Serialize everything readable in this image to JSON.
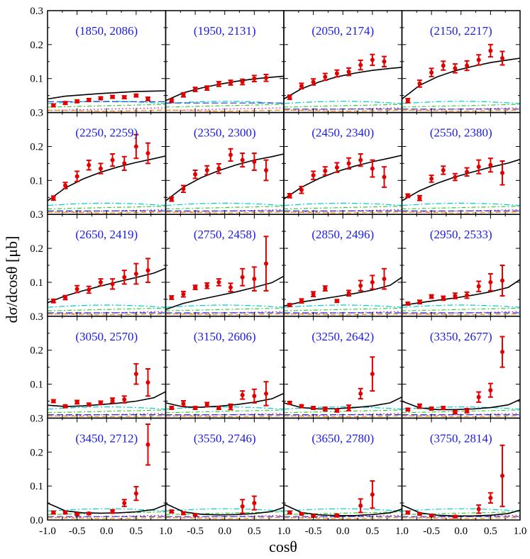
{
  "chart_data": {
    "type": "scatter",
    "layout": "5 rows x 4 columns grid of panels sharing axes",
    "xlabel": "cosθ",
    "ylabel": "dσ/dcosθ [μb]",
    "xlim": [
      -1.0,
      1.0
    ],
    "ylim": [
      0.0,
      0.3
    ],
    "x_ticks": [
      "-1.0",
      "-0.5",
      "0.0",
      "0.5",
      "1.0"
    ],
    "y_ticks": [
      "0.0",
      "0.1",
      "0.2",
      "0.3"
    ],
    "cos_points": [
      -0.9,
      -0.7,
      -0.5,
      -0.3,
      -0.1,
      0.1,
      0.3,
      0.5,
      0.7,
      0.9
    ],
    "panels": [
      {
        "label": "(1850, 2086)",
        "y": [
          0.021,
          0.028,
          0.033,
          0.037,
          0.042,
          0.046,
          0.045,
          0.05,
          0.04,
          null
        ],
        "err": [
          0.004,
          0.004,
          0.004,
          0.004,
          0.004,
          0.004,
          0.004,
          0.004,
          0.005,
          0
        ],
        "fit": [
          0.04,
          0.048,
          0.052,
          0.056,
          0.059,
          0.062,
          0.063,
          0.064
        ]
      },
      {
        "label": "(1950, 2131)",
        "y": [
          0.035,
          0.052,
          0.068,
          0.072,
          0.084,
          0.088,
          0.09,
          0.1,
          0.102,
          null
        ],
        "err": [
          0.005,
          0.006,
          0.006,
          0.006,
          0.007,
          0.007,
          0.008,
          0.009,
          0.01,
          0
        ],
        "fit": [
          0.035,
          0.058,
          0.072,
          0.083,
          0.092,
          0.099,
          0.104,
          0.107
        ]
      },
      {
        "label": "(2050, 2174)",
        "y": [
          0.045,
          0.078,
          0.09,
          0.105,
          0.115,
          0.12,
          0.14,
          0.155,
          0.15,
          null
        ],
        "err": [
          0.006,
          0.008,
          0.009,
          0.01,
          0.01,
          0.011,
          0.014,
          0.016,
          0.015,
          0
        ],
        "fit": [
          0.04,
          0.07,
          0.09,
          0.105,
          0.116,
          0.124,
          0.13,
          0.133
        ]
      },
      {
        "label": "(2150, 2217)",
        "y": [
          0.035,
          0.085,
          0.118,
          0.138,
          0.13,
          0.138,
          0.155,
          0.182,
          0.16,
          null
        ],
        "err": [
          0.006,
          0.01,
          0.012,
          0.013,
          0.013,
          0.014,
          0.015,
          0.018,
          0.02,
          0
        ],
        "fit": [
          0.04,
          0.08,
          0.105,
          0.123,
          0.136,
          0.147,
          0.155,
          0.16
        ]
      },
      {
        "label": "(2250, 2259)",
        "y": [
          0.048,
          0.085,
          0.112,
          0.145,
          0.135,
          0.16,
          0.15,
          0.2,
          0.18,
          null
        ],
        "err": [
          0.006,
          0.009,
          0.015,
          0.014,
          0.015,
          0.018,
          0.02,
          0.035,
          0.03,
          0
        ],
        "fit": [
          0.04,
          0.078,
          0.104,
          0.124,
          0.14,
          0.153,
          0.164,
          0.172
        ]
      },
      {
        "label": "(2350, 2300)",
        "y": [
          0.045,
          0.075,
          0.118,
          0.13,
          0.135,
          0.175,
          0.16,
          0.155,
          0.13,
          null
        ],
        "err": [
          0.006,
          0.01,
          0.012,
          0.013,
          0.014,
          0.018,
          0.02,
          0.025,
          0.03,
          0
        ],
        "fit": [
          0.04,
          0.08,
          0.108,
          0.129,
          0.146,
          0.16,
          0.17,
          0.178
        ]
      },
      {
        "label": "(2450, 2340)",
        "y": [
          0.055,
          0.072,
          0.115,
          0.128,
          0.138,
          0.15,
          0.16,
          0.135,
          0.11,
          null
        ],
        "err": [
          0.006,
          0.01,
          0.012,
          0.012,
          0.014,
          0.016,
          0.018,
          0.025,
          0.03,
          0
        ],
        "fit": [
          0.045,
          0.08,
          0.106,
          0.126,
          0.142,
          0.155,
          0.166,
          0.174
        ]
      },
      {
        "label": "(2550, 2380)",
        "y": [
          0.055,
          0.048,
          0.105,
          0.13,
          0.11,
          0.125,
          0.14,
          0.145,
          0.122,
          null
        ],
        "err": [
          0.005,
          0.007,
          0.01,
          0.012,
          0.01,
          0.012,
          0.02,
          0.02,
          0.035,
          0
        ],
        "fit": [
          0.04,
          0.07,
          0.092,
          0.11,
          0.125,
          0.139,
          0.151,
          0.162
        ]
      },
      {
        "label": "(2650, 2419)",
        "y": [
          0.045,
          0.055,
          0.08,
          0.078,
          0.1,
          0.095,
          0.115,
          0.125,
          0.135,
          null
        ],
        "err": [
          0.005,
          0.006,
          0.01,
          0.01,
          0.01,
          0.015,
          0.02,
          0.03,
          0.035,
          0
        ],
        "fit": [
          0.04,
          0.06,
          0.075,
          0.089,
          0.102,
          0.114,
          0.127,
          0.141
        ]
      },
      {
        "label": "(2750, 2458)",
        "y": [
          0.055,
          0.065,
          0.085,
          0.09,
          0.1,
          0.085,
          0.115,
          0.11,
          0.155,
          null
        ],
        "err": [
          0.005,
          0.008,
          0.006,
          0.008,
          0.01,
          0.012,
          0.025,
          0.035,
          0.08,
          0
        ],
        "fit": [
          0.02,
          0.038,
          0.05,
          0.061,
          0.072,
          0.085,
          0.099,
          0.118
        ]
      },
      {
        "label": "(2850, 2496)",
        "y": [
          0.033,
          0.045,
          0.065,
          0.082,
          0.045,
          0.068,
          0.09,
          0.1,
          0.11,
          null
        ],
        "err": [
          0.004,
          0.006,
          0.007,
          0.007,
          0.004,
          0.008,
          0.015,
          0.02,
          0.03,
          0
        ],
        "fit": [
          0.03,
          0.042,
          0.05,
          0.058,
          0.067,
          0.077,
          0.091,
          0.115
        ]
      },
      {
        "label": "(2950, 2533)",
        "y": [
          0.037,
          0.042,
          0.058,
          0.053,
          0.06,
          0.062,
          0.088,
          0.1,
          0.105,
          null
        ],
        "err": [
          0.004,
          0.005,
          0.005,
          0.006,
          0.008,
          0.009,
          0.015,
          0.025,
          0.045,
          0
        ],
        "fit": [
          0.032,
          0.04,
          0.047,
          0.054,
          0.062,
          0.072,
          0.085,
          0.108
        ]
      },
      {
        "label": "(3050, 2570)",
        "y": [
          0.05,
          0.035,
          0.047,
          0.04,
          0.045,
          0.052,
          0.055,
          0.13,
          0.105,
          null
        ],
        "err": [
          0.004,
          0.004,
          0.005,
          0.004,
          0.005,
          0.007,
          0.01,
          0.03,
          0.04,
          0
        ],
        "fit": [
          0.038,
          0.034,
          0.036,
          0.04,
          0.044,
          0.05,
          0.06,
          0.078
        ]
      },
      {
        "label": "(3150, 2606)",
        "y": [
          0.03,
          0.043,
          0.03,
          0.04,
          0.03,
          0.033,
          0.068,
          0.065,
          0.072,
          null
        ],
        "err": [
          0.004,
          0.008,
          0.004,
          0.006,
          0.004,
          0.008,
          0.012,
          0.02,
          0.035,
          0
        ],
        "fit": [
          0.045,
          0.033,
          0.032,
          0.035,
          0.04,
          0.047,
          0.057,
          0.073
        ]
      },
      {
        "label": "(3250, 2642)",
        "y": [
          0.045,
          0.035,
          0.03,
          0.027,
          0.022,
          0.03,
          0.072,
          0.13,
          null,
          null
        ],
        "err": [
          0.004,
          0.004,
          0.004,
          0.005,
          0.004,
          0.008,
          0.015,
          0.05,
          0,
          0
        ],
        "fit": [
          0.045,
          0.031,
          0.027,
          0.028,
          0.031,
          0.036,
          0.045,
          0.062
        ]
      },
      {
        "label": "(3350, 2677)",
        "y": [
          0.025,
          0.035,
          0.028,
          0.03,
          0.017,
          0.022,
          0.062,
          0.082,
          0.195,
          null
        ],
        "err": [
          0.004,
          0.006,
          0.004,
          0.004,
          0.004,
          0.006,
          0.015,
          0.02,
          0.045,
          0
        ],
        "fit": [
          0.05,
          0.03,
          0.025,
          0.025,
          0.027,
          0.031,
          0.039,
          0.055
        ]
      },
      {
        "label": "(3450, 2712)",
        "y": [
          0.022,
          0.022,
          0.017,
          0.019,
          null,
          0.025,
          0.05,
          0.078,
          0.222,
          null
        ],
        "err": [
          0.004,
          0.004,
          0.003,
          0.003,
          0,
          0.005,
          0.01,
          0.02,
          0.06,
          0
        ],
        "fit": [
          0.05,
          0.027,
          0.021,
          0.02,
          0.021,
          0.024,
          0.031,
          0.045
        ]
      },
      {
        "label": "(3550, 2746)",
        "y": [
          0.025,
          0.02,
          0.015,
          null,
          null,
          null,
          0.04,
          0.05,
          null,
          null
        ],
        "err": [
          0.004,
          0.004,
          0.003,
          0,
          0,
          0,
          0.02,
          0.02,
          0,
          0
        ],
        "fit": [
          0.048,
          0.024,
          0.017,
          0.015,
          0.016,
          0.019,
          0.025,
          0.037
        ]
      },
      {
        "label": "(3650, 2780)",
        "y": [
          0.022,
          0.018,
          0.012,
          null,
          0.013,
          null,
          0.042,
          0.075,
          null,
          null
        ],
        "err": [
          0.004,
          0.003,
          0.003,
          0,
          0.004,
          0,
          0.02,
          0.04,
          0,
          0
        ],
        "fit": [
          0.046,
          0.022,
          0.015,
          0.013,
          0.013,
          0.016,
          0.021,
          0.032
        ]
      },
      {
        "label": "(3750, 2814)",
        "y": [
          0.022,
          0.018,
          0.013,
          null,
          0.01,
          null,
          0.032,
          0.065,
          0.13,
          null
        ],
        "err": [
          0.004,
          0.003,
          0.003,
          0,
          0.003,
          0,
          0.012,
          0.015,
          0.09,
          0
        ],
        "fit": [
          0.044,
          0.021,
          0.014,
          0.012,
          0.012,
          0.014,
          0.019,
          0.029
        ]
      }
    ]
  }
}
